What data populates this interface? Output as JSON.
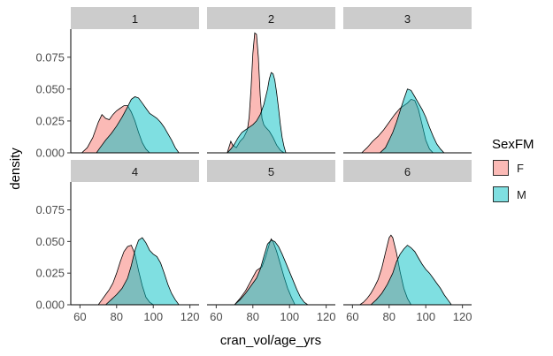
{
  "chart_data": {
    "type": "area",
    "subtype": "density facet grid",
    "xlabel": "cran_vol/age_yrs",
    "ylabel": "density",
    "xlim": [
      55,
      125
    ],
    "ylim": [
      0,
      0.097
    ],
    "x_ticks": [
      60,
      80,
      100,
      120
    ],
    "y_ticks": [
      0.0,
      0.025,
      0.05,
      0.075
    ],
    "y_tick_labels": [
      "0.000",
      "0.025",
      "0.050",
      "0.075"
    ],
    "grid": false,
    "legend": {
      "title": "SexFM",
      "position": "right",
      "entries": [
        {
          "key": "F",
          "color": "#F8766D"
        },
        {
          "key": "M",
          "color": "#00BFC4"
        }
      ]
    },
    "fill_alpha": 0.5,
    "facets": [
      {
        "label": "1",
        "series": [
          {
            "key": "F",
            "points": [
              [
                61,
                0.0
              ],
              [
                64,
                0.004
              ],
              [
                67,
                0.012
              ],
              [
                70,
                0.024
              ],
              [
                72,
                0.03
              ],
              [
                74,
                0.027
              ],
              [
                76,
                0.026
              ],
              [
                78,
                0.03
              ],
              [
                80,
                0.033
              ],
              [
                82,
                0.035
              ],
              [
                84,
                0.037
              ],
              [
                86,
                0.037
              ],
              [
                88,
                0.032
              ],
              [
                90,
                0.025
              ],
              [
                92,
                0.016
              ],
              [
                94,
                0.008
              ],
              [
                96,
                0.003
              ],
              [
                98,
                0.0
              ]
            ]
          },
          {
            "key": "M",
            "points": [
              [
                69,
                0.0
              ],
              [
                71,
                0.004
              ],
              [
                74,
                0.01
              ],
              [
                77,
                0.015
              ],
              [
                80,
                0.021
              ],
              [
                83,
                0.028
              ],
              [
                86,
                0.036
              ],
              [
                88,
                0.042
              ],
              [
                90,
                0.044
              ],
              [
                92,
                0.043
              ],
              [
                94,
                0.039
              ],
              [
                96,
                0.035
              ],
              [
                98,
                0.031
              ],
              [
                100,
                0.029
              ],
              [
                102,
                0.027
              ],
              [
                104,
                0.024
              ],
              [
                106,
                0.02
              ],
              [
                108,
                0.015
              ],
              [
                110,
                0.01
              ],
              [
                112,
                0.004
              ],
              [
                114,
                0.0
              ]
            ]
          }
        ]
      },
      {
        "label": "2",
        "series": [
          {
            "key": "F",
            "points": [
              [
                66,
                0.0
              ],
              [
                68,
                0.009
              ],
              [
                69,
                0.006
              ],
              [
                71,
                0.004
              ],
              [
                73,
                0.009
              ],
              [
                75,
                0.012
              ],
              [
                77,
                0.018
              ],
              [
                78,
                0.028
              ],
              [
                79,
                0.05
              ],
              [
                80,
                0.078
              ],
              [
                81,
                0.094
              ],
              [
                82,
                0.093
              ],
              [
                83,
                0.075
              ],
              [
                84,
                0.045
              ],
              [
                85,
                0.027
              ],
              [
                86,
                0.022
              ],
              [
                87,
                0.02
              ],
              [
                89,
                0.017
              ],
              [
                91,
                0.012
              ],
              [
                93,
                0.006
              ],
              [
                95,
                0.002
              ],
              [
                97,
                0.0
              ]
            ]
          },
          {
            "key": "M",
            "points": [
              [
                66,
                0.0
              ],
              [
                68,
                0.003
              ],
              [
                70,
                0.007
              ],
              [
                72,
                0.012
              ],
              [
                74,
                0.016
              ],
              [
                76,
                0.018
              ],
              [
                78,
                0.02
              ],
              [
                80,
                0.022
              ],
              [
                82,
                0.025
              ],
              [
                84,
                0.03
              ],
              [
                86,
                0.038
              ],
              [
                88,
                0.05
              ],
              [
                89,
                0.058
              ],
              [
                90,
                0.063
              ],
              [
                91,
                0.062
              ],
              [
                92,
                0.057
              ],
              [
                93,
                0.047
              ],
              [
                94,
                0.035
              ],
              [
                95,
                0.022
              ],
              [
                96,
                0.012
              ],
              [
                97,
                0.005
              ],
              [
                98,
                0.0
              ]
            ]
          }
        ]
      },
      {
        "label": "3",
        "series": [
          {
            "key": "F",
            "points": [
              [
                65,
                0.0
              ],
              [
                68,
                0.004
              ],
              [
                71,
                0.009
              ],
              [
                74,
                0.013
              ],
              [
                77,
                0.018
              ],
              [
                80,
                0.024
              ],
              [
                83,
                0.03
              ],
              [
                86,
                0.035
              ],
              [
                88,
                0.037
              ],
              [
                90,
                0.039
              ],
              [
                92,
                0.042
              ],
              [
                94,
                0.041
              ],
              [
                96,
                0.034
              ],
              [
                98,
                0.022
              ],
              [
                100,
                0.01
              ],
              [
                102,
                0.003
              ],
              [
                104,
                0.0
              ]
            ]
          },
          {
            "key": "M",
            "points": [
              [
                75,
                0.0
              ],
              [
                78,
                0.004
              ],
              [
                80,
                0.01
              ],
              [
                82,
                0.016
              ],
              [
                84,
                0.024
              ],
              [
                86,
                0.033
              ],
              [
                88,
                0.042
              ],
              [
                90,
                0.05
              ],
              [
                92,
                0.049
              ],
              [
                94,
                0.044
              ],
              [
                96,
                0.039
              ],
              [
                98,
                0.034
              ],
              [
                100,
                0.028
              ],
              [
                102,
                0.02
              ],
              [
                104,
                0.013
              ],
              [
                106,
                0.007
              ],
              [
                108,
                0.003
              ],
              [
                110,
                0.0
              ]
            ]
          }
        ]
      },
      {
        "label": "4",
        "series": [
          {
            "key": "F",
            "points": [
              [
                70,
                0.0
              ],
              [
                72,
                0.004
              ],
              [
                74,
                0.008
              ],
              [
                76,
                0.012
              ],
              [
                78,
                0.017
              ],
              [
                80,
                0.025
              ],
              [
                82,
                0.034
              ],
              [
                84,
                0.042
              ],
              [
                86,
                0.046
              ],
              [
                88,
                0.047
              ],
              [
                90,
                0.04
              ],
              [
                92,
                0.027
              ],
              [
                94,
                0.015
              ],
              [
                96,
                0.006
              ],
              [
                98,
                0.002
              ],
              [
                100,
                0.0
              ]
            ]
          },
          {
            "key": "M",
            "points": [
              [
                74,
                0.0
              ],
              [
                77,
                0.004
              ],
              [
                80,
                0.008
              ],
              [
                83,
                0.013
              ],
              [
                86,
                0.021
              ],
              [
                88,
                0.031
              ],
              [
                90,
                0.043
              ],
              [
                92,
                0.051
              ],
              [
                94,
                0.053
              ],
              [
                96,
                0.049
              ],
              [
                98,
                0.043
              ],
              [
                100,
                0.04
              ],
              [
                102,
                0.038
              ],
              [
                104,
                0.033
              ],
              [
                106,
                0.025
              ],
              [
                108,
                0.016
              ],
              [
                110,
                0.009
              ],
              [
                112,
                0.004
              ],
              [
                114,
                0.0
              ]
            ]
          }
        ]
      },
      {
        "label": "5",
        "series": [
          {
            "key": "F",
            "points": [
              [
                70,
                0.0
              ],
              [
                73,
                0.005
              ],
              [
                76,
                0.011
              ],
              [
                79,
                0.019
              ],
              [
                82,
                0.027
              ],
              [
                85,
                0.03
              ],
              [
                87,
                0.038
              ],
              [
                89,
                0.048
              ],
              [
                90,
                0.052
              ],
              [
                91,
                0.05
              ],
              [
                93,
                0.042
              ],
              [
                95,
                0.032
              ],
              [
                97,
                0.022
              ],
              [
                99,
                0.013
              ],
              [
                101,
                0.006
              ],
              [
                103,
                0.0
              ]
            ]
          },
          {
            "key": "M",
            "points": [
              [
                70,
                0.0
              ],
              [
                73,
                0.004
              ],
              [
                76,
                0.009
              ],
              [
                79,
                0.015
              ],
              [
                82,
                0.021
              ],
              [
                84,
                0.028
              ],
              [
                86,
                0.038
              ],
              [
                88,
                0.048
              ],
              [
                90,
                0.051
              ],
              [
                92,
                0.05
              ],
              [
                94,
                0.046
              ],
              [
                96,
                0.04
              ],
              [
                98,
                0.033
              ],
              [
                100,
                0.026
              ],
              [
                102,
                0.019
              ],
              [
                104,
                0.012
              ],
              [
                106,
                0.006
              ],
              [
                108,
                0.002
              ],
              [
                110,
                0.0
              ]
            ]
          }
        ]
      },
      {
        "label": "6",
        "series": [
          {
            "key": "F",
            "points": [
              [
                64,
                0.0
              ],
              [
                66,
                0.002
              ],
              [
                68,
                0.005
              ],
              [
                70,
                0.009
              ],
              [
                72,
                0.014
              ],
              [
                74,
                0.02
              ],
              [
                76,
                0.029
              ],
              [
                78,
                0.041
              ],
              [
                80,
                0.053
              ],
              [
                81,
                0.055
              ],
              [
                82,
                0.053
              ],
              [
                84,
                0.041
              ],
              [
                86,
                0.026
              ],
              [
                88,
                0.013
              ],
              [
                90,
                0.005
              ],
              [
                92,
                0.0
              ]
            ]
          },
          {
            "key": "M",
            "points": [
              [
                70,
                0.0
              ],
              [
                73,
                0.004
              ],
              [
                76,
                0.009
              ],
              [
                79,
                0.016
              ],
              [
                82,
                0.025
              ],
              [
                84,
                0.034
              ],
              [
                86,
                0.04
              ],
              [
                88,
                0.044
              ],
              [
                90,
                0.047
              ],
              [
                92,
                0.045
              ],
              [
                94,
                0.042
              ],
              [
                96,
                0.037
              ],
              [
                98,
                0.032
              ],
              [
                100,
                0.028
              ],
              [
                102,
                0.025
              ],
              [
                104,
                0.021
              ],
              [
                106,
                0.017
              ],
              [
                108,
                0.013
              ],
              [
                110,
                0.008
              ],
              [
                112,
                0.004
              ],
              [
                114,
                0.0
              ]
            ]
          }
        ]
      }
    ]
  }
}
